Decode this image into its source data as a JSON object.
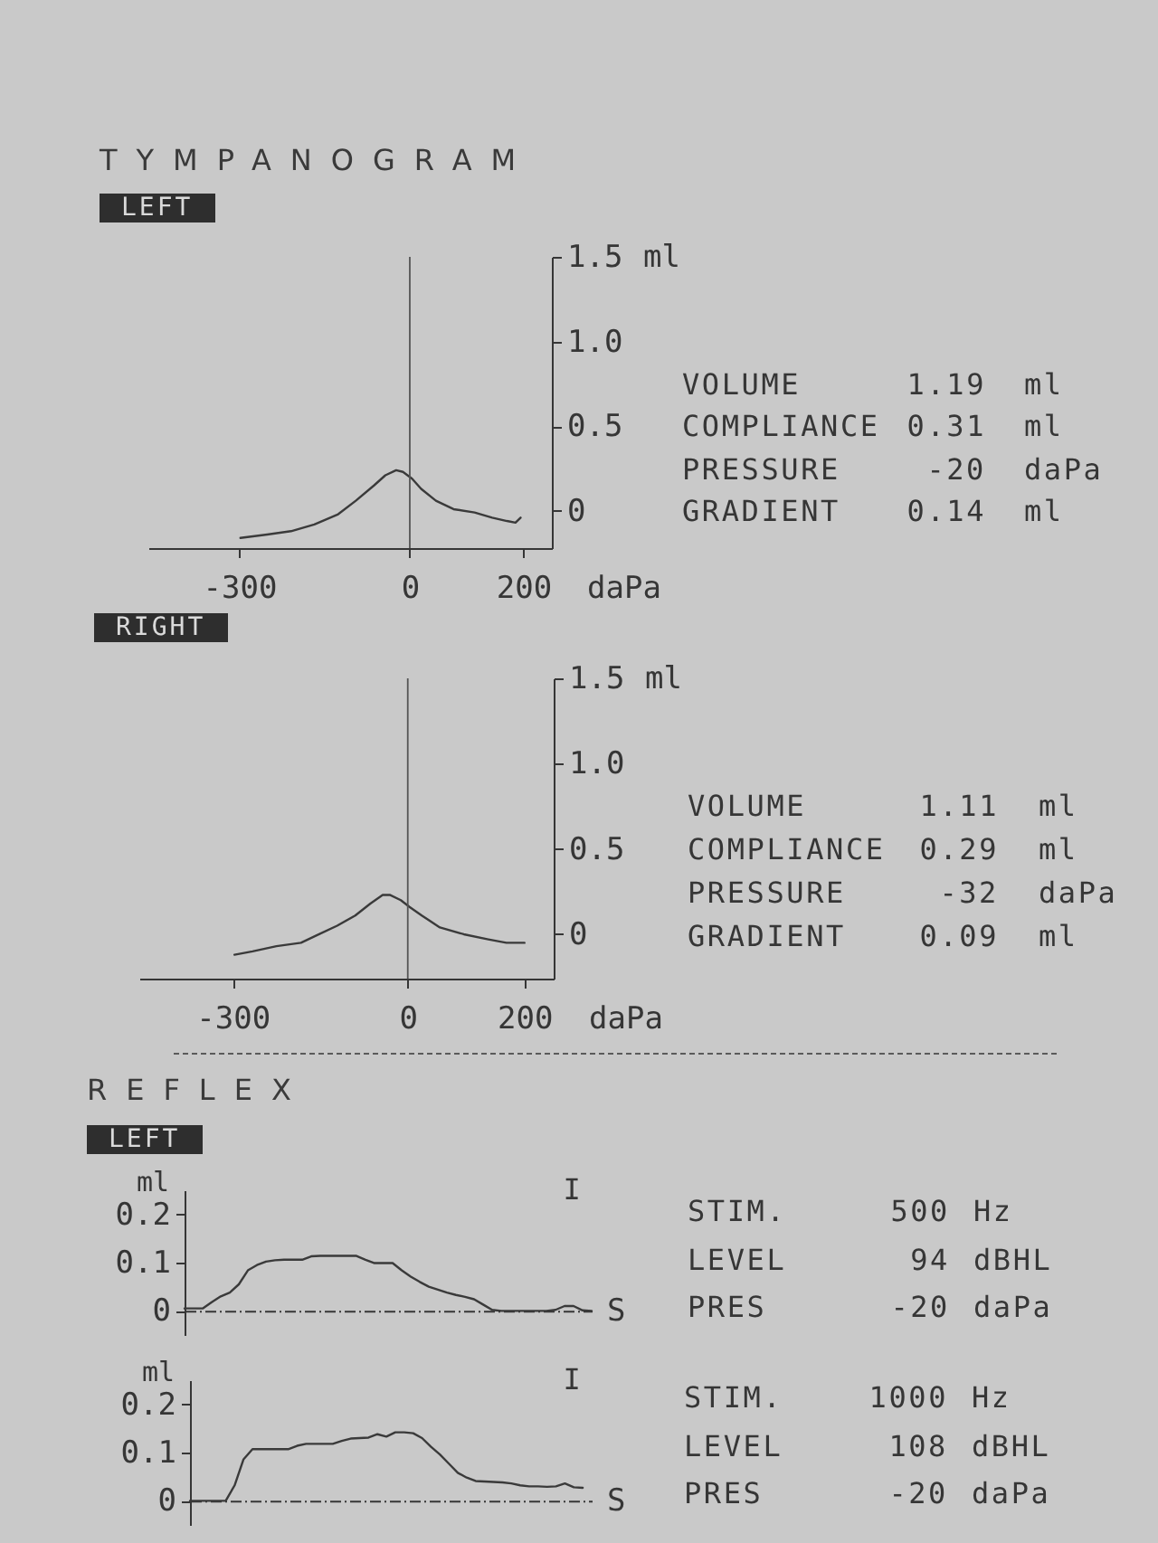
{
  "chart_data": [
    {
      "type": "line",
      "title": "TYMPANOGRAM",
      "subtitle": "LEFT",
      "xlabel": "daPa",
      "ylabel": "ml",
      "color": "#3a3a3a",
      "x": [
        -298,
        -251,
        -209,
        -168,
        -126,
        -95,
        -63,
        -43,
        -24,
        -12,
        4,
        20,
        46,
        77,
        114,
        145,
        171,
        186,
        195
      ],
      "values": [
        -0.16,
        -0.14,
        -0.12,
        -0.08,
        -0.02,
        0.06,
        0.15,
        0.21,
        0.24,
        0.23,
        0.19,
        0.13,
        0.06,
        0.01,
        -0.01,
        -0.04,
        -0.06,
        -0.07,
        -0.04
      ],
      "xlim": [
        -460,
        250
      ],
      "xticks": [
        -300,
        0,
        200
      ],
      "ylim": [
        -0.22,
        1.5
      ],
      "yticks": [
        0,
        0.5,
        {
          "value": 1,
          "label": "1.0"
        },
        1.5
      ],
      "ref_lines": [
        {
          "axis": "x",
          "value": 0,
          "color": "#555555"
        }
      ]
    },
    {
      "type": "other",
      "annotations": [
        "VOLUME 1.19 ml",
        "COMPLIANCE 0.31 ml",
        "PRESSURE -20 daPa",
        "GRADIENT 0.14 ml"
      ]
    },
    {
      "type": "line",
      "subtitle": "RIGHT",
      "xlabel": "daPa",
      "ylabel": "ml",
      "color": "#3a3a3a",
      "x": [
        -297,
        -266,
        -225,
        -183,
        -152,
        -121,
        -90,
        -64,
        -43,
        -30,
        -12,
        3,
        24,
        55,
        96,
        138,
        169,
        200
      ],
      "values": [
        -0.12,
        -0.1,
        -0.07,
        -0.05,
        0,
        0.05,
        0.11,
        0.18,
        0.23,
        0.23,
        0.2,
        0.16,
        0.11,
        0.04,
        0,
        -0.03,
        -0.05,
        -0.05
      ],
      "xlim": [
        -460,
        250
      ],
      "xticks": [
        -300,
        0,
        200
      ],
      "ylim": [
        -0.26,
        1.5
      ],
      "yticks": [
        0,
        0.5,
        {
          "value": 1,
          "label": "1.0"
        },
        1.5
      ],
      "ref_lines": [
        {
          "axis": "x",
          "value": 0,
          "color": "#555555"
        }
      ]
    },
    {
      "type": "other",
      "annotations": [
        "VOLUME 1.11 ml",
        "COMPLIANCE 0.29 ml",
        "PRESSURE -32 daPa",
        "GRADIENT 0.09 ml"
      ]
    },
    {
      "type": "line",
      "title": "REFLEX",
      "subtitle": "LEFT",
      "xlabel": "S",
      "ylabel": "ml",
      "color": "#3a3a3a",
      "categories": [
        null,
        null,
        null,
        null,
        null,
        null,
        null,
        null,
        null,
        null,
        null,
        null,
        null,
        null,
        null,
        null,
        null,
        null,
        null,
        null,
        null,
        null,
        null,
        null,
        null,
        null,
        null,
        null,
        null,
        null,
        null,
        null,
        null,
        null,
        null,
        null,
        null,
        null,
        null,
        null,
        null,
        null,
        null,
        null,
        null,
        null
      ],
      "values": [
        0.005,
        0.005,
        0.005,
        0.018,
        0.03,
        0.038,
        0.055,
        0.084,
        0.095,
        0.102,
        0.105,
        0.106,
        0.106,
        0.106,
        0.113,
        0.114,
        0.114,
        0.114,
        0.114,
        0.114,
        0.106,
        0.099,
        0.099,
        0.099,
        0.084,
        0.071,
        0.06,
        0.05,
        0.044,
        0.038,
        0.033,
        0.029,
        0.024,
        0.013,
        0.002,
        0,
        0,
        0,
        0,
        0,
        0,
        0.002,
        0.01,
        0.01,
        0.001,
        0
      ],
      "ylim": [
        -0.05,
        0.25
      ],
      "yticks": [
        0,
        0.1,
        0.2
      ],
      "tick_labels": "y",
      "annotations": [
        "I"
      ]
    },
    {
      "type": "other",
      "annotations": [
        "STIM. 500 Hz",
        "LEVEL 94 dBHL",
        "PRES -20 daPa"
      ]
    },
    {
      "type": "line",
      "xlabel": "S",
      "ylabel": "ml",
      "color": "#3a3a3a",
      "categories": [
        null,
        null,
        null,
        null,
        null,
        null,
        null,
        null,
        null,
        null,
        null,
        null,
        null,
        null,
        null,
        null,
        null,
        null,
        null,
        null,
        null,
        null,
        null,
        null,
        null,
        null,
        null,
        null,
        null,
        null,
        null,
        null,
        null,
        null,
        null,
        null,
        null,
        null,
        null,
        null,
        null,
        null,
        null,
        null,
        null,
        null
      ],
      "values": [
        0,
        0,
        0,
        0,
        0,
        0.032,
        0.086,
        0.107,
        0.107,
        0.107,
        0.107,
        0.107,
        0.114,
        0.118,
        0.118,
        0.118,
        0.118,
        0.124,
        0.129,
        0.13,
        0.131,
        0.138,
        0.133,
        0.142,
        0.142,
        0.14,
        0.13,
        0.112,
        0.096,
        0.077,
        0.058,
        0.048,
        0.041,
        0.04,
        0.039,
        0.038,
        0.036,
        0.032,
        0.03,
        0.03,
        0.029,
        0.03,
        0.036,
        0.028,
        0.027,
        null
      ],
      "ylim": [
        -0.05,
        0.25
      ],
      "yticks": [
        0,
        0.1,
        0.2
      ],
      "tick_labels": "y",
      "annotations": [
        "I"
      ]
    },
    {
      "type": "other",
      "annotations": [
        "STIM. 1000 Hz",
        "LEVEL 108 dBHL",
        "PRES -20 daPa"
      ]
    }
  ]
}
